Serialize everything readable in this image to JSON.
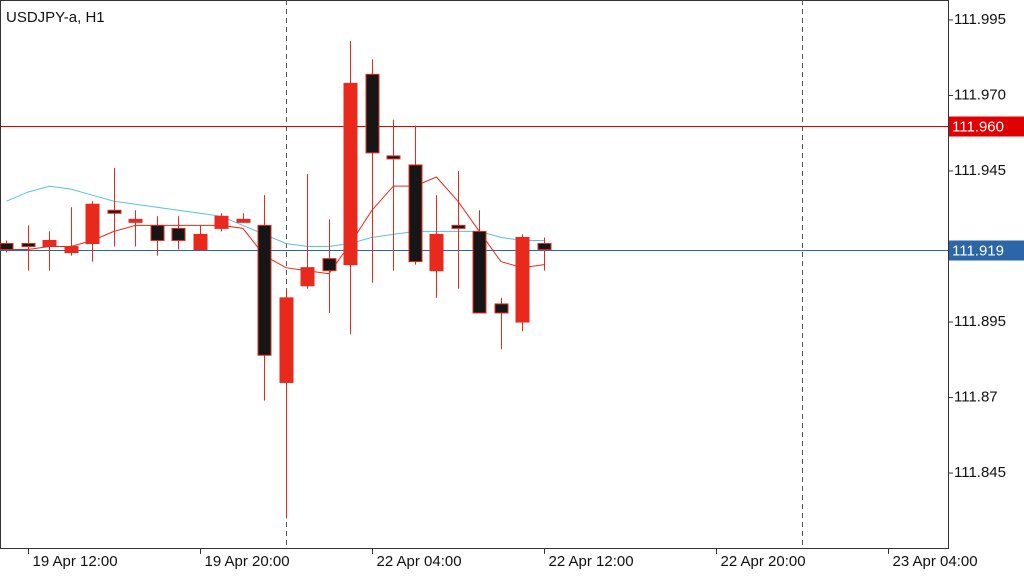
{
  "chart_data": {
    "type": "candlestick",
    "title": "USDJPY-a, H1",
    "open": [
      111.921,
      111.921,
      111.92,
      111.918,
      111.921,
      111.932,
      111.928,
      111.927,
      111.926,
      111.919,
      111.926,
      111.928,
      111.927,
      111.875,
      111.907,
      111.916,
      111.914,
      111.977,
      111.95,
      111.947,
      111.912,
      111.927,
      111.925,
      111.901,
      111.895,
      111.921
    ],
    "high": [
      111.922,
      111.927,
      111.925,
      111.933,
      111.935,
      111.946,
      111.932,
      111.93,
      111.93,
      111.927,
      111.931,
      111.931,
      111.937,
      111.906,
      111.944,
      111.929,
      111.988,
      111.982,
      111.962,
      111.96,
      111.937,
      111.945,
      111.932,
      111.903,
      111.924,
      111.923
    ],
    "low": [
      111.918,
      111.912,
      111.912,
      111.917,
      111.915,
      111.92,
      111.92,
      111.917,
      111.919,
      111.919,
      111.925,
      111.928,
      111.869,
      111.83,
      111.906,
      111.898,
      111.891,
      111.908,
      111.912,
      111.914,
      111.903,
      111.906,
      111.898,
      111.886,
      111.892,
      111.912
    ],
    "close": [
      111.919,
      111.92,
      111.922,
      111.92,
      111.934,
      111.931,
      111.929,
      111.922,
      111.922,
      111.924,
      111.93,
      111.929,
      111.884,
      111.903,
      111.913,
      111.912,
      111.974,
      111.951,
      111.949,
      111.915,
      111.924,
      111.926,
      111.898,
      111.898,
      111.923,
      111.919
    ],
    "up_color": "#e8291c",
    "down_color": "#161616",
    "series": [
      {
        "color": "#e8291c",
        "values": [
          111.919,
          111.919,
          111.92,
          111.92,
          111.922,
          111.925,
          111.927,
          111.927,
          111.927,
          111.927,
          111.927,
          111.926,
          111.917,
          111.913,
          111.912,
          111.911,
          111.921,
          111.932,
          111.94,
          111.94,
          111.943,
          111.935,
          111.925,
          111.915,
          111.913,
          111.914
        ]
      },
      {
        "color": "#5bc0de",
        "values": [
          111.935,
          111.938,
          111.94,
          111.939,
          111.937,
          111.935,
          111.934,
          111.933,
          111.932,
          111.931,
          111.93,
          111.927,
          111.924,
          111.921,
          111.92,
          111.92,
          111.921,
          111.923,
          111.924,
          111.925,
          111.925,
          111.925,
          111.925,
          111.923,
          111.922,
          111.922
        ]
      }
    ],
    "price_lines": [
      {
        "value": 111.96,
        "label": "111.960",
        "color": "#e00000"
      },
      {
        "value": 111.919,
        "label": "111.919",
        "color": "#2a66a8"
      }
    ],
    "ylim": [
      111.8202,
      112.0016
    ],
    "yticks": [
      111.845,
      111.87,
      {
        "value": 111.895,
        "label": "111.895"
      },
      111.92,
      111.945,
      {
        "value": 111.97,
        "label": "111.970"
      },
      111.995
    ],
    "xlim": [
      -0.3,
      43.8
    ],
    "xticks": [
      {
        "value": 1,
        "label": "19 Apr 12:00"
      },
      {
        "value": 9,
        "label": "19 Apr 20:00"
      },
      {
        "value": 17,
        "label": "22 Apr 04:00"
      },
      {
        "value": 25,
        "label": "22 Apr 12:00"
      },
      {
        "value": 33,
        "label": "22 Apr 20:00"
      },
      {
        "value": 41,
        "label": "23 Apr 04:00"
      }
    ],
    "period_separators": [
      13,
      37
    ]
  }
}
